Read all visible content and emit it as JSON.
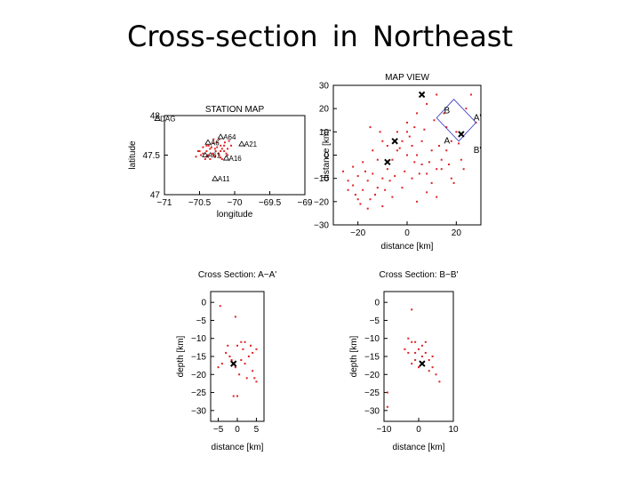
{
  "slide_title": "Cross-section  in  Northeast",
  "chart_data": [
    {
      "id": "station",
      "type": "scatter",
      "title": "STATION MAP",
      "xlabel": "longitude",
      "ylabel": "latitude",
      "xlim": [
        -71,
        -69
      ],
      "ylim": [
        47,
        48
      ],
      "xticks": [
        -71,
        -70.5,
        -70,
        -69.5,
        -69
      ],
      "xtick_labels": [
        "−71",
        "−70.5",
        "−70",
        "−69.5",
        "−69"
      ],
      "yticks": [
        47,
        47.5,
        48
      ],
      "ytick_labels": [
        "47",
        "47.5",
        "48"
      ],
      "stations": [
        {
          "name": "DAG",
          "x": -71.1,
          "y": 47.96
        },
        {
          "name": "A64",
          "x": -70.2,
          "y": 47.73
        },
        {
          "name": "A21",
          "x": -69.9,
          "y": 47.64
        },
        {
          "name": "A6",
          "x": -70.38,
          "y": 47.66
        },
        {
          "name": "A61",
          "x": -70.42,
          "y": 47.5
        },
        {
          "name": "A16",
          "x": -70.12,
          "y": 47.46
        },
        {
          "name": "A11",
          "x": -70.28,
          "y": 47.2
        }
      ],
      "events": [
        [
          -70.5,
          47.55
        ],
        [
          -70.45,
          47.6
        ],
        [
          -70.4,
          47.62
        ],
        [
          -70.35,
          47.58
        ],
        [
          -70.3,
          47.65
        ],
        [
          -70.25,
          47.6
        ],
        [
          -70.2,
          47.55
        ],
        [
          -70.15,
          47.62
        ],
        [
          -70.1,
          47.58
        ],
        [
          -70.32,
          47.52
        ],
        [
          -70.38,
          47.5
        ],
        [
          -70.28,
          47.48
        ],
        [
          -70.22,
          47.5
        ],
        [
          -70.18,
          47.45
        ],
        [
          -70.12,
          47.52
        ],
        [
          -70.42,
          47.45
        ],
        [
          -70.48,
          47.5
        ],
        [
          -70.55,
          47.48
        ],
        [
          -70.3,
          47.7
        ],
        [
          -70.22,
          47.7
        ],
        [
          -70.05,
          47.62
        ],
        [
          -70.08,
          47.68
        ],
        [
          -70.35,
          47.45
        ],
        [
          -70.27,
          47.55
        ],
        [
          -70.2,
          47.62
        ],
        [
          -70.4,
          47.55
        ],
        [
          -70.15,
          47.55
        ],
        [
          -70.33,
          47.6
        ],
        [
          -70.25,
          47.66
        ],
        [
          -70.45,
          47.52
        ],
        [
          -70.1,
          47.5
        ],
        [
          -70.28,
          47.58
        ],
        [
          -70.37,
          47.62
        ],
        [
          -70.18,
          47.58
        ],
        [
          -70.23,
          47.52
        ],
        [
          -70.52,
          47.55
        ],
        [
          -70.3,
          47.5
        ],
        [
          -70.14,
          47.66
        ],
        [
          -70.4,
          47.48
        ],
        [
          -70.2,
          47.47
        ]
      ]
    },
    {
      "id": "map",
      "type": "scatter",
      "title": "MAP VIEW",
      "xlabel": "distance [km]",
      "ylabel": "distance [km]",
      "xlim": [
        -30,
        30
      ],
      "ylim": [
        -30,
        30
      ],
      "xticks": [
        -20,
        0,
        20
      ],
      "xtick_labels": [
        "−20",
        "0",
        "20"
      ],
      "yticks": [
        -30,
        -20,
        -10,
        0,
        10,
        20,
        30
      ],
      "ytick_labels": [
        "−30",
        "−20",
        "−10",
        "0",
        "10",
        "20",
        "30"
      ],
      "section_labels": [
        {
          "text": "B",
          "x": 15,
          "y": 18
        },
        {
          "text": "A'",
          "x": 27,
          "y": 15
        },
        {
          "text": "A",
          "x": 15,
          "y": 5
        },
        {
          "text": "B'",
          "x": 27,
          "y": 1
        }
      ],
      "section_box": [
        [
          19,
          24
        ],
        [
          28,
          14
        ],
        [
          21,
          6
        ],
        [
          12,
          16
        ]
      ],
      "stars": [
        [
          6,
          26
        ],
        [
          -5,
          6
        ],
        [
          -8,
          -3
        ],
        [
          22,
          9
        ]
      ],
      "events": [
        [
          -24,
          -11
        ],
        [
          -22,
          -13
        ],
        [
          -20,
          -9
        ],
        [
          -18,
          -15
        ],
        [
          -16,
          -11
        ],
        [
          -21,
          -17
        ],
        [
          -19,
          -21
        ],
        [
          -15,
          -19
        ],
        [
          -12,
          -14
        ],
        [
          -10,
          -10
        ],
        [
          -8,
          -6
        ],
        [
          -6,
          -2
        ],
        [
          -4,
          2
        ],
        [
          -2,
          6
        ],
        [
          0,
          10
        ],
        [
          2,
          4
        ],
        [
          4,
          0
        ],
        [
          6,
          -4
        ],
        [
          8,
          -8
        ],
        [
          10,
          -12
        ],
        [
          12,
          -6
        ],
        [
          14,
          -2
        ],
        [
          16,
          2
        ],
        [
          18,
          6
        ],
        [
          20,
          10
        ],
        [
          2,
          -10
        ],
        [
          -2,
          -14
        ],
        [
          -6,
          -18
        ],
        [
          -10,
          -22
        ],
        [
          -14,
          -8
        ],
        [
          -12,
          -2
        ],
        [
          -8,
          4
        ],
        [
          -4,
          10
        ],
        [
          0,
          14
        ],
        [
          4,
          18
        ],
        [
          8,
          22
        ],
        [
          12,
          26
        ],
        [
          -18,
          -3
        ],
        [
          -22,
          -5
        ],
        [
          -26,
          -7
        ],
        [
          6,
          6
        ],
        [
          10,
          2
        ],
        [
          14,
          -6
        ],
        [
          18,
          -10
        ],
        [
          22,
          -2
        ],
        [
          -16,
          -23
        ],
        [
          -20,
          -19
        ],
        [
          -24,
          -15
        ],
        [
          0,
          0
        ],
        [
          3,
          -3
        ],
        [
          -3,
          3
        ],
        [
          7,
          11
        ],
        [
          11,
          15
        ],
        [
          -7,
          -11
        ],
        [
          16,
          12
        ],
        [
          24,
          20
        ],
        [
          26,
          26
        ],
        [
          28,
          14
        ],
        [
          -10,
          6
        ],
        [
          -14,
          2
        ],
        [
          8,
          -16
        ],
        [
          4,
          -20
        ],
        [
          12,
          -18
        ],
        [
          15,
          18
        ],
        [
          -1,
          -7
        ],
        [
          5,
          -8
        ],
        [
          9,
          -3
        ],
        [
          13,
          4
        ],
        [
          17,
          -4
        ],
        [
          21,
          5
        ],
        [
          -5,
          -9
        ],
        [
          -9,
          -15
        ],
        [
          -13,
          -17
        ],
        [
          -17,
          -7
        ],
        [
          1,
          8
        ],
        [
          3,
          12
        ],
        [
          -11,
          10
        ],
        [
          -15,
          12
        ],
        [
          19,
          -12
        ],
        [
          23,
          -6
        ]
      ]
    },
    {
      "id": "sectionA",
      "type": "scatter",
      "title": "Cross Section: A−A'",
      "xlabel": "distance [km]",
      "ylabel": "depth [km]",
      "xlim": [
        -7,
        7
      ],
      "ylim": [
        -33,
        3
      ],
      "xticks": [
        -5,
        0,
        5
      ],
      "xtick_labels": [
        "−5",
        "0",
        "5"
      ],
      "yticks": [
        0,
        -5,
        -10,
        -15,
        -20,
        -25,
        -30
      ],
      "ytick_labels": [
        "0",
        "−5",
        "−10",
        "−15",
        "−20",
        "−25",
        "−30"
      ],
      "star": [
        -1,
        -17
      ],
      "events": [
        [
          -4.5,
          -1
        ],
        [
          -0.5,
          -4
        ],
        [
          1,
          -11
        ],
        [
          0,
          -12
        ],
        [
          2,
          -11
        ],
        [
          3.5,
          -12
        ],
        [
          -3,
          -14
        ],
        [
          -2,
          -15
        ],
        [
          -1.5,
          -16
        ],
        [
          1,
          -16
        ],
        [
          2,
          -17
        ],
        [
          3,
          -15
        ],
        [
          4,
          -14
        ],
        [
          5,
          -13
        ],
        [
          -4,
          -17
        ],
        [
          -5,
          -18
        ],
        [
          0.5,
          -20
        ],
        [
          2.5,
          -21
        ],
        [
          4.5,
          -21
        ],
        [
          -1,
          -26
        ],
        [
          0,
          -26
        ],
        [
          5,
          -22
        ],
        [
          4,
          -19
        ],
        [
          -0.5,
          -18
        ],
        [
          1.5,
          -13
        ],
        [
          -2.5,
          -12
        ]
      ]
    },
    {
      "id": "sectionB",
      "type": "scatter",
      "title": "Cross Section: B−B'",
      "xlabel": "distance [km]",
      "ylabel": "depth [km]",
      "xlim": [
        -10,
        10
      ],
      "ylim": [
        -33,
        3
      ],
      "xticks": [
        -10,
        0,
        10
      ],
      "xtick_labels": [
        "−10",
        "0",
        "10"
      ],
      "yticks": [
        0,
        -5,
        -10,
        -15,
        -20,
        -25,
        -30
      ],
      "ytick_labels": [
        "0",
        "−5",
        "−10",
        "−15",
        "−20",
        "−25",
        "−30"
      ],
      "star": [
        1,
        -17
      ],
      "events": [
        [
          -2,
          -2
        ],
        [
          -3,
          -10
        ],
        [
          -2,
          -11
        ],
        [
          -1,
          -11
        ],
        [
          1,
          -12
        ],
        [
          2,
          -11
        ],
        [
          -4,
          -13
        ],
        [
          -3,
          -14
        ],
        [
          0,
          -13
        ],
        [
          2,
          -14
        ],
        [
          3,
          -16
        ],
        [
          4,
          -18
        ],
        [
          5,
          -20
        ],
        [
          -1,
          -16
        ],
        [
          -2,
          -17
        ],
        [
          0,
          -18
        ],
        [
          3,
          -19
        ],
        [
          6,
          -22
        ],
        [
          -9,
          -25
        ],
        [
          -9,
          -29
        ],
        [
          1,
          -15
        ],
        [
          -1,
          -14
        ],
        [
          4,
          -15
        ]
      ]
    }
  ]
}
